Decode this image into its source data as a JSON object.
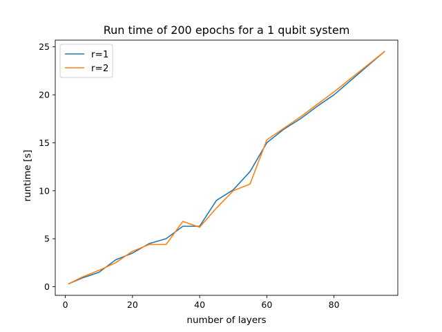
{
  "chart_data": {
    "type": "line",
    "title": "Run time of 200 epochs for a 1 qubit system",
    "xlabel": "number of layers",
    "ylabel": "runtime [s]",
    "xlim": [
      -3,
      99
    ],
    "ylim": [
      -0.9,
      25.7
    ],
    "xticks": [
      0,
      20,
      40,
      60,
      80
    ],
    "yticks": [
      0,
      5,
      10,
      15,
      20,
      25
    ],
    "grid": false,
    "legend_position": "top-left",
    "series": [
      {
        "name": "r=1",
        "color": "#1f77b4",
        "x": [
          1,
          5,
          10,
          15,
          20,
          25,
          30,
          35,
          40,
          45,
          50,
          55,
          60,
          65,
          70,
          75,
          80,
          85,
          90,
          95
        ],
        "y": [
          0.3,
          0.9,
          1.5,
          2.8,
          3.5,
          4.5,
          5.0,
          6.3,
          6.3,
          9.0,
          10.1,
          12.0,
          15.0,
          16.4,
          17.5,
          18.8,
          20.0,
          21.5,
          23.0,
          24.5
        ]
      },
      {
        "name": "r=2",
        "color": "#ff7f0e",
        "x": [
          1,
          5,
          10,
          15,
          20,
          25,
          30,
          35,
          40,
          45,
          50,
          55,
          60,
          65,
          70,
          75,
          80,
          85,
          90,
          95
        ],
        "y": [
          0.3,
          1.0,
          1.7,
          2.5,
          3.7,
          4.4,
          4.4,
          6.8,
          6.2,
          8.2,
          10.0,
          10.7,
          15.3,
          16.5,
          17.7,
          19.0,
          20.3,
          21.7,
          23.1,
          24.5
        ]
      }
    ]
  }
}
